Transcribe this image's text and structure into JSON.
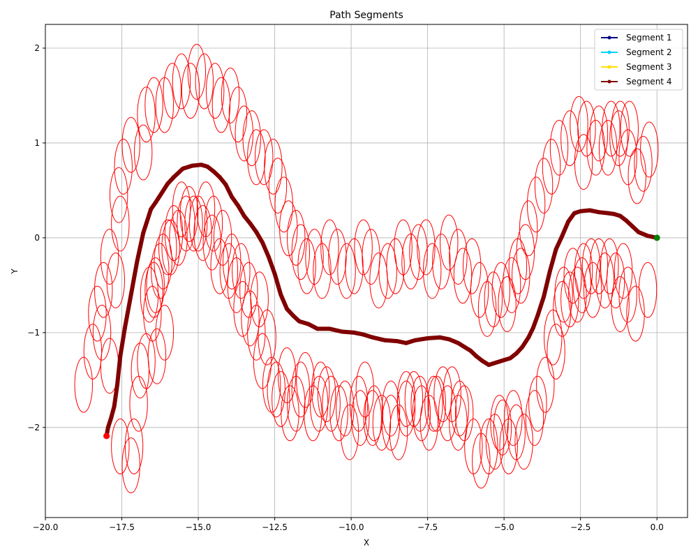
{
  "chart_data": {
    "type": "line",
    "title": "Path Segments",
    "xlabel": "X",
    "ylabel": "Y",
    "xlim": [
      -20,
      1
    ],
    "ylim": [
      -2.95,
      2.25
    ],
    "xticks": [
      -20,
      -17.5,
      -15,
      -12.5,
      -10,
      -7.5,
      -5,
      -2.5,
      0
    ],
    "xtick_labels": [
      "−20.0",
      "−17.5",
      "−15.0",
      "−12.5",
      "−10.0",
      "−7.5",
      "−5.0",
      "−2.5",
      "0.0"
    ],
    "yticks": [
      -2,
      -1,
      0,
      1,
      2
    ],
    "ytick_labels": [
      "−2",
      "−1",
      "0",
      "1",
      "2"
    ],
    "grid": true,
    "legend_position": "top-right",
    "legend": [
      {
        "name": "Segment 1",
        "color": "#000080"
      },
      {
        "name": "Segment 2",
        "color": "#00d0ff"
      },
      {
        "name": "Segment 3",
        "color": "#ffe000"
      },
      {
        "name": "Segment 4",
        "color": "#800000"
      }
    ],
    "path_color": "#800000",
    "path": [
      [
        0,
        0
      ],
      [
        -0.3,
        0.02
      ],
      [
        -0.6,
        0.06
      ],
      [
        -0.8,
        0.12
      ],
      [
        -1.0,
        0.18
      ],
      [
        -1.2,
        0.23
      ],
      [
        -1.4,
        0.25
      ],
      [
        -1.6,
        0.26
      ],
      [
        -1.9,
        0.27
      ],
      [
        -2.2,
        0.29
      ],
      [
        -2.5,
        0.28
      ],
      [
        -2.7,
        0.26
      ],
      [
        -2.9,
        0.17
      ],
      [
        -3.1,
        0.02
      ],
      [
        -3.3,
        -0.12
      ],
      [
        -3.5,
        -0.35
      ],
      [
        -3.7,
        -0.62
      ],
      [
        -3.9,
        -0.82
      ],
      [
        -4.05,
        -0.95
      ],
      [
        -4.2,
        -1.05
      ],
      [
        -4.4,
        -1.15
      ],
      [
        -4.6,
        -1.22
      ],
      [
        -4.8,
        -1.27
      ],
      [
        -5.0,
        -1.29
      ],
      [
        -5.2,
        -1.31
      ],
      [
        -5.5,
        -1.34
      ],
      [
        -5.7,
        -1.3
      ],
      [
        -5.9,
        -1.25
      ],
      [
        -6.1,
        -1.19
      ],
      [
        -6.3,
        -1.15
      ],
      [
        -6.5,
        -1.11
      ],
      [
        -6.8,
        -1.07
      ],
      [
        -7.1,
        -1.05
      ],
      [
        -7.5,
        -1.06
      ],
      [
        -7.9,
        -1.08
      ],
      [
        -8.2,
        -1.11
      ],
      [
        -8.5,
        -1.09
      ],
      [
        -8.9,
        -1.08
      ],
      [
        -9.3,
        -1.05
      ],
      [
        -9.6,
        -1.02
      ],
      [
        -9.9,
        -1.0
      ],
      [
        -10.3,
        -0.99
      ],
      [
        -10.7,
        -0.96
      ],
      [
        -11.1,
        -0.96
      ],
      [
        -11.4,
        -0.91
      ],
      [
        -11.7,
        -0.88
      ],
      [
        -11.9,
        -0.82
      ],
      [
        -12.1,
        -0.75
      ],
      [
        -12.3,
        -0.6
      ],
      [
        -12.5,
        -0.38
      ],
      [
        -12.7,
        -0.2
      ],
      [
        -12.9,
        -0.05
      ],
      [
        -13.1,
        0.06
      ],
      [
        -13.3,
        0.15
      ],
      [
        -13.5,
        0.23
      ],
      [
        -13.7,
        0.34
      ],
      [
        -13.9,
        0.43
      ],
      [
        -14.1,
        0.56
      ],
      [
        -14.3,
        0.64
      ],
      [
        -14.5,
        0.7
      ],
      [
        -14.7,
        0.75
      ],
      [
        -14.9,
        0.77
      ],
      [
        -15.2,
        0.76
      ],
      [
        -15.5,
        0.73
      ],
      [
        -15.8,
        0.64
      ],
      [
        -16.0,
        0.57
      ],
      [
        -16.2,
        0.47
      ],
      [
        -16.4,
        0.37
      ],
      [
        -16.55,
        0.3
      ],
      [
        -16.7,
        0.15
      ],
      [
        -16.8,
        0.05
      ],
      [
        -16.9,
        -0.1
      ],
      [
        -17.0,
        -0.25
      ],
      [
        -17.2,
        -0.6
      ],
      [
        -17.4,
        -0.95
      ],
      [
        -17.55,
        -1.25
      ],
      [
        -17.65,
        -1.55
      ],
      [
        -17.75,
        -1.78
      ],
      [
        -17.85,
        -1.9
      ],
      [
        -17.95,
        -2.0
      ],
      [
        -18.0,
        -2.09
      ]
    ],
    "start_point": {
      "x": 0,
      "y": 0,
      "color": "#008000"
    },
    "end_point": {
      "x": -18,
      "y": -2.09,
      "color": "#ff0000"
    },
    "ellipse_color": "#ff0000",
    "ellipse_size": {
      "rx": 0.29,
      "ry": 0.29
    },
    "ellipses": [
      [
        -0.25,
        0.93
      ],
      [
        -0.45,
        0.78
      ],
      [
        -0.3,
        -0.55
      ],
      [
        -0.7,
        -0.8
      ],
      [
        -0.9,
        1.15
      ],
      [
        -1.2,
        1.15
      ],
      [
        -1.5,
        1.15
      ],
      [
        -1.9,
        1.1
      ],
      [
        -2.3,
        1.15
      ],
      [
        -2.55,
        1.2
      ],
      [
        -2.85,
        1.05
      ],
      [
        -3.2,
        0.95
      ],
      [
        -3.45,
        0.75
      ],
      [
        -3.7,
        0.55
      ],
      [
        -3.95,
        0.35
      ],
      [
        -4.2,
        0.1
      ],
      [
        -4.3,
        -0.15
      ],
      [
        -4.45,
        -0.4
      ],
      [
        -0.65,
        0.65
      ],
      [
        -0.95,
        0.85
      ],
      [
        -1.25,
        1.05
      ],
      [
        -1.6,
        0.95
      ],
      [
        -2.0,
        0.95
      ],
      [
        -2.4,
        0.8
      ],
      [
        -1.1,
        -0.35
      ],
      [
        -1.35,
        -0.45
      ],
      [
        -1.7,
        -0.45
      ],
      [
        -2.1,
        -0.55
      ],
      [
        -2.4,
        -0.35
      ],
      [
        -2.6,
        -0.6
      ],
      [
        -2.85,
        -0.65
      ],
      [
        -3.1,
        -0.75
      ],
      [
        -3.3,
        -1.2
      ],
      [
        -0.95,
        -0.6
      ],
      [
        -1.2,
        -0.7
      ],
      [
        -1.55,
        -0.3
      ],
      [
        -1.9,
        -0.3
      ],
      [
        -2.15,
        -0.3
      ],
      [
        -2.45,
        -0.5
      ],
      [
        -2.75,
        -0.4
      ],
      [
        -3.05,
        -0.6
      ],
      [
        -3.4,
        -1.05
      ],
      [
        -3.65,
        -1.55
      ],
      [
        -3.9,
        -1.75
      ],
      [
        -4.0,
        -1.9
      ],
      [
        -4.35,
        -2.15
      ],
      [
        -4.6,
        -2.05
      ],
      [
        -4.85,
        -2.2
      ],
      [
        -5.05,
        -2.0
      ],
      [
        -5.3,
        -2.15
      ],
      [
        -5.75,
        -2.35
      ],
      [
        -6.0,
        -2.2
      ],
      [
        -6.3,
        -1.85
      ],
      [
        -6.5,
        -1.95
      ],
      [
        -6.7,
        -1.65
      ],
      [
        -7.0,
        -1.65
      ],
      [
        -7.2,
        -1.75
      ],
      [
        -7.45,
        -1.95
      ],
      [
        -7.75,
        -1.75
      ],
      [
        -7.95,
        -1.7
      ],
      [
        -8.2,
        -1.8
      ],
      [
        -8.45,
        -2.05
      ],
      [
        -8.7,
        -1.8
      ],
      [
        -9.0,
        -1.95
      ],
      [
        -9.3,
        -1.9
      ],
      [
        -9.55,
        -1.6
      ],
      [
        -9.75,
        -1.75
      ],
      [
        -10.05,
        -2.05
      ],
      [
        -10.4,
        -1.85
      ],
      [
        -10.65,
        -1.75
      ],
      [
        -11.0,
        -1.6
      ],
      [
        -11.25,
        -1.85
      ],
      [
        -11.5,
        -1.5
      ],
      [
        -11.8,
        -1.75
      ],
      [
        -12.0,
        -1.85
      ],
      [
        -12.3,
        -1.7
      ],
      [
        -12.6,
        -1.55
      ],
      [
        -12.9,
        -1.3
      ],
      [
        -13.1,
        -1.0
      ],
      [
        -13.3,
        -0.85
      ],
      [
        -13.55,
        -0.75
      ],
      [
        -13.75,
        -0.5
      ],
      [
        -14.0,
        -0.35
      ],
      [
        -14.3,
        -0.3
      ],
      [
        -14.55,
        -0.05
      ],
      [
        -14.85,
        0.05
      ],
      [
        -15.15,
        0.15
      ],
      [
        -15.4,
        0.15
      ],
      [
        -15.65,
        0.0
      ],
      [
        -15.9,
        -0.1
      ],
      [
        -16.15,
        -0.25
      ],
      [
        -16.4,
        -0.5
      ],
      [
        -16.5,
        -0.8
      ],
      [
        -16.7,
        -1.3
      ],
      [
        -16.9,
        -1.4
      ],
      [
        -16.95,
        -1.75
      ],
      [
        -17.1,
        -2.2
      ],
      [
        -17.2,
        -2.4
      ],
      [
        -17.55,
        -2.2
      ],
      [
        -17.9,
        -1.35
      ],
      [
        -18.15,
        -1.0
      ],
      [
        -18.3,
        -0.8
      ],
      [
        -18.45,
        -1.2
      ],
      [
        -18.75,
        -1.55
      ],
      [
        -18.1,
        -0.55
      ],
      [
        -17.9,
        -0.2
      ],
      [
        -17.7,
        -0.45
      ],
      [
        -17.55,
        0.15
      ],
      [
        -17.6,
        0.45
      ],
      [
        -17.45,
        0.75
      ],
      [
        -17.2,
        0.98
      ],
      [
        -16.8,
        0.9
      ],
      [
        -16.7,
        1.3
      ],
      [
        -16.45,
        1.4
      ],
      [
        -16.1,
        1.4
      ],
      [
        -15.85,
        1.55
      ],
      [
        -15.55,
        1.65
      ],
      [
        -15.25,
        1.55
      ],
      [
        -15.05,
        1.75
      ],
      [
        -14.8,
        1.65
      ],
      [
        -14.45,
        1.55
      ],
      [
        -14.25,
        1.4
      ],
      [
        -13.95,
        1.5
      ],
      [
        -13.7,
        1.3
      ],
      [
        -13.5,
        1.1
      ],
      [
        -13.25,
        1.05
      ],
      [
        -13.1,
        0.85
      ],
      [
        -12.85,
        0.85
      ],
      [
        -12.55,
        0.75
      ],
      [
        -12.4,
        0.55
      ],
      [
        -12.2,
        0.35
      ],
      [
        -12.05,
        0.1
      ],
      [
        -11.8,
        0.0
      ],
      [
        -11.65,
        -0.15
      ],
      [
        -11.45,
        -0.3
      ],
      [
        -11.2,
        -0.2
      ],
      [
        -10.95,
        -0.35
      ],
      [
        -10.7,
        -0.1
      ],
      [
        -10.45,
        -0.2
      ],
      [
        -10.15,
        -0.35
      ],
      [
        -9.9,
        -0.3
      ],
      [
        -9.6,
        -0.1
      ],
      [
        -9.35,
        -0.2
      ],
      [
        -9.1,
        -0.45
      ],
      [
        -8.8,
        -0.35
      ],
      [
        -8.55,
        -0.3
      ],
      [
        -8.3,
        -0.1
      ],
      [
        -8.05,
        -0.25
      ],
      [
        -7.8,
        -0.15
      ],
      [
        -7.55,
        -0.1
      ],
      [
        -7.35,
        -0.35
      ],
      [
        -7.05,
        -0.25
      ],
      [
        -6.8,
        -0.05
      ],
      [
        -6.5,
        -0.2
      ],
      [
        -6.35,
        -0.4
      ],
      [
        -6.05,
        -0.3
      ],
      [
        -5.8,
        -0.55
      ],
      [
        -5.55,
        -0.75
      ],
      [
        -5.35,
        -0.65
      ],
      [
        -5.1,
        -0.55
      ],
      [
        -4.9,
        -0.7
      ],
      [
        -4.75,
        -0.5
      ],
      [
        -4.55,
        -0.3
      ],
      [
        -13.35,
        -0.55
      ],
      [
        -13.6,
        -0.35
      ],
      [
        -13.9,
        -0.25
      ],
      [
        -14.2,
        0.0
      ],
      [
        -14.5,
        0.15
      ],
      [
        -14.75,
        0.3
      ],
      [
        -15.0,
        0.15
      ],
      [
        -15.3,
        0.25
      ],
      [
        -15.55,
        0.3
      ],
      [
        -15.8,
        0.05
      ],
      [
        -16.0,
        -0.1
      ],
      [
        -16.25,
        -0.35
      ],
      [
        -16.45,
        -0.55
      ],
      [
        -16.6,
        -0.6
      ],
      [
        -16.35,
        -1.25
      ],
      [
        -16.1,
        -1.0
      ],
      [
        -13.0,
        -0.65
      ],
      [
        -12.75,
        -1.05
      ],
      [
        -12.45,
        -1.6
      ],
      [
        -12.1,
        -1.45
      ],
      [
        -11.65,
        -1.6
      ],
      [
        -11.05,
        -1.75
      ],
      [
        -10.8,
        -1.65
      ],
      [
        -10.2,
        -1.8
      ],
      [
        -9.7,
        -1.9
      ],
      [
        -9.25,
        -1.85
      ],
      [
        -8.7,
        -1.95
      ],
      [
        -8.2,
        -1.7
      ],
      [
        -7.7,
        -1.85
      ],
      [
        -7.3,
        -1.75
      ],
      [
        -6.85,
        -1.85
      ],
      [
        -6.45,
        -1.8
      ],
      [
        -5.5,
        -2.2
      ],
      [
        -5.15,
        -1.95
      ],
      [
        -4.7,
        -1.9
      ]
    ]
  }
}
